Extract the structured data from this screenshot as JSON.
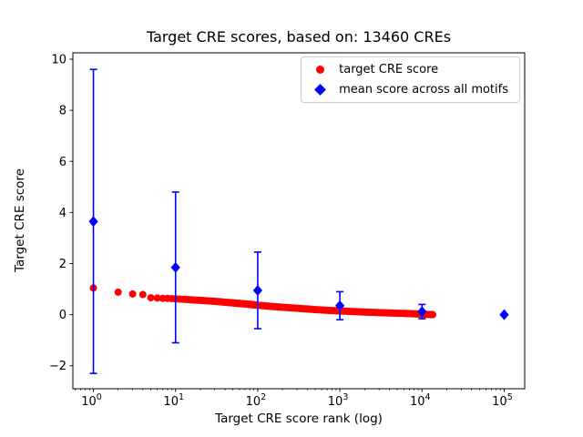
{
  "chart_data": {
    "type": "scatter",
    "title": "Target CRE scores, based on: 13460 CREs",
    "xlabel": "Target CRE score rank (log)",
    "ylabel": "Target CRE score",
    "x_scale": "log",
    "xlim_log10": [
      -0.25,
      5.25
    ],
    "ylim": [
      -2.9,
      10.25
    ],
    "x_tick_exponents": [
      0,
      1,
      2,
      3,
      4,
      5
    ],
    "y_ticks": [
      -2,
      0,
      2,
      4,
      6,
      8,
      10
    ],
    "grid": false,
    "legend": {
      "position": "upper right",
      "items": [
        {
          "label": "target CRE score",
          "marker": "circle",
          "color": "#ff0000"
        },
        {
          "label": "mean score across all motifs",
          "marker": "diamond",
          "color": "#0000ff"
        }
      ]
    },
    "series": [
      {
        "name": "target CRE score",
        "type": "scatter",
        "marker": "circle",
        "color": "#ff0000",
        "n_points": 13460,
        "points_sampled": [
          [
            1,
            1.04
          ],
          [
            2,
            0.88
          ],
          [
            3,
            0.81
          ],
          [
            4,
            0.79
          ],
          [
            5,
            0.66
          ],
          [
            6,
            0.65
          ],
          [
            7,
            0.64
          ],
          [
            8,
            0.635
          ],
          [
            10,
            0.62
          ],
          [
            15,
            0.585
          ],
          [
            20,
            0.56
          ],
          [
            30,
            0.52
          ],
          [
            50,
            0.46
          ],
          [
            70,
            0.42
          ],
          [
            100,
            0.37
          ],
          [
            150,
            0.32
          ],
          [
            200,
            0.29
          ],
          [
            300,
            0.25
          ],
          [
            500,
            0.2
          ],
          [
            700,
            0.17
          ],
          [
            1000,
            0.145
          ],
          [
            2000,
            0.1
          ],
          [
            3000,
            0.08
          ],
          [
            5000,
            0.055
          ],
          [
            7000,
            0.04
          ],
          [
            10000,
            0.02
          ],
          [
            13460,
            0.0
          ]
        ]
      },
      {
        "name": "mean score across all motifs",
        "type": "errorbar",
        "marker": "diamond",
        "color": "#0000ff",
        "x": [
          1,
          10,
          100,
          1000,
          10000,
          100000
        ],
        "y": [
          3.65,
          1.85,
          0.95,
          0.35,
          0.12,
          0.0
        ],
        "yerr": [
          5.95,
          2.95,
          1.5,
          0.55,
          0.28,
          0.0
        ]
      }
    ]
  }
}
